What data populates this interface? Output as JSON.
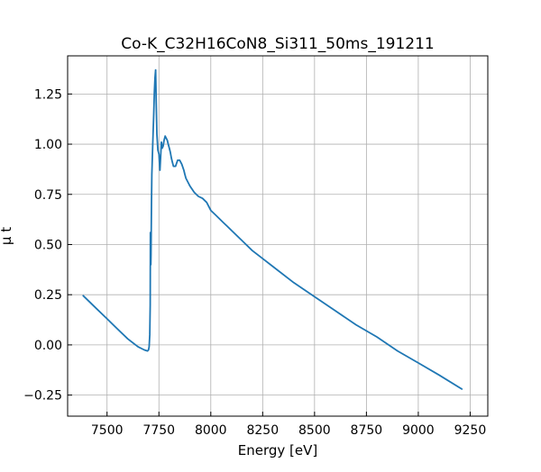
{
  "chart_data": {
    "type": "line",
    "title": "Co-K_C32H16CoN8_Si311_50ms_191211",
    "xlabel": "Energy [eV]",
    "ylabel": "μ t",
    "xlim": [
      7310,
      9335
    ],
    "ylim": [
      -0.355,
      1.44
    ],
    "grid": true,
    "xticks": [
      7500,
      7750,
      8000,
      8250,
      8500,
      8750,
      9000,
      9250
    ],
    "yticks": [
      -0.25,
      0.0,
      0.25,
      0.5,
      0.75,
      1.0,
      1.25
    ],
    "xtick_labels": [
      "7500",
      "7750",
      "8000",
      "8250",
      "8500",
      "8750",
      "9000",
      "9250"
    ],
    "ytick_labels": [
      "−0.25",
      "0.00",
      "0.25",
      "0.50",
      "0.75",
      "1.00",
      "1.25"
    ],
    "series": [
      {
        "color": "#1f77b4",
        "x": [
          7385,
          7450,
          7500,
          7550,
          7600,
          7650,
          7680,
          7695,
          7700,
          7703,
          7706,
          7708,
          7709,
          7710,
          7711,
          7712,
          7713,
          7714,
          7716,
          7720,
          7725,
          7728,
          7731,
          7734,
          7737,
          7740,
          7745,
          7750,
          7755,
          7758,
          7762,
          7766,
          7770,
          7775,
          7780,
          7785,
          7790,
          7795,
          7800,
          7805,
          7810,
          7815,
          7820,
          7830,
          7840,
          7850,
          7860,
          7870,
          7875,
          7880,
          7890,
          7900,
          7920,
          7940,
          7960,
          7980,
          8000,
          8020,
          8040,
          8060,
          8080,
          8100,
          8150,
          8200,
          8250,
          8300,
          8400,
          8500,
          8600,
          8700,
          8800,
          8900,
          9000,
          9100,
          9210
        ],
        "y": [
          0.245,
          0.18,
          0.13,
          0.08,
          0.03,
          -0.01,
          -0.025,
          -0.03,
          -0.025,
          -0.01,
          0.05,
          0.2,
          0.56,
          0.42,
          0.4,
          0.45,
          0.55,
          0.7,
          0.85,
          1.0,
          1.15,
          1.26,
          1.33,
          1.37,
          1.2,
          1.05,
          0.97,
          0.95,
          0.87,
          0.93,
          1.01,
          0.98,
          0.99,
          1.02,
          1.04,
          1.03,
          1.02,
          1.0,
          0.98,
          0.96,
          0.93,
          0.91,
          0.89,
          0.89,
          0.92,
          0.92,
          0.9,
          0.87,
          0.85,
          0.83,
          0.81,
          0.79,
          0.76,
          0.74,
          0.73,
          0.71,
          0.67,
          0.65,
          0.63,
          0.61,
          0.59,
          0.57,
          0.52,
          0.47,
          0.43,
          0.39,
          0.31,
          0.24,
          0.17,
          0.1,
          0.04,
          -0.03,
          -0.09,
          -0.15,
          -0.22
        ]
      }
    ]
  }
}
